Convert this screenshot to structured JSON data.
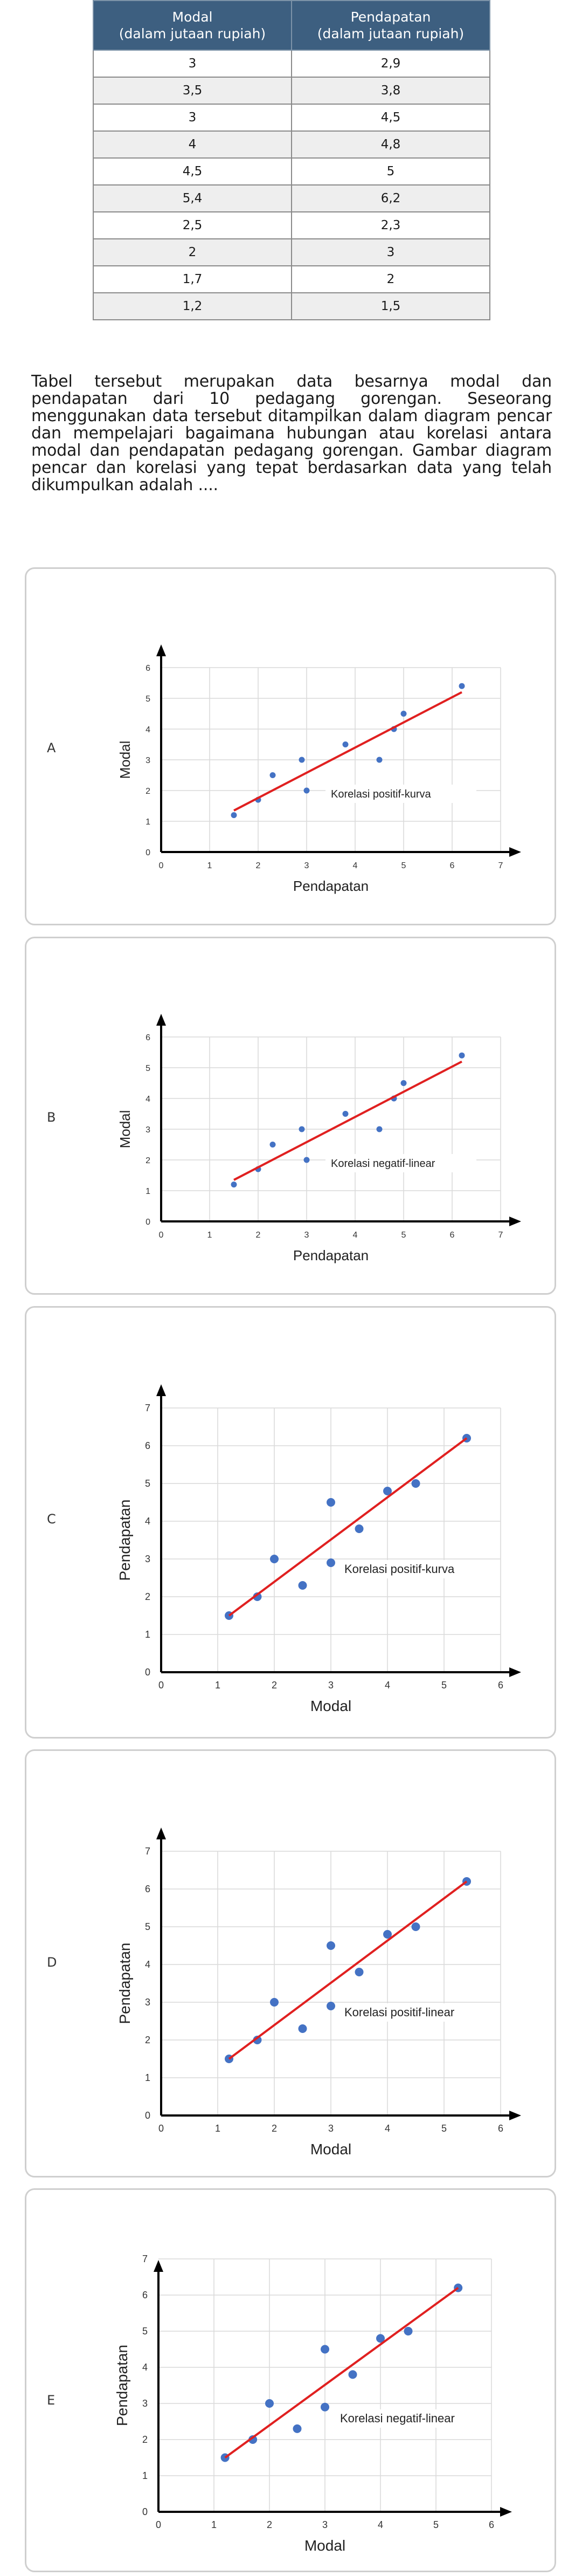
{
  "table": {
    "headers": [
      [
        "Modal",
        "(dalam jutaan rupiah)"
      ],
      [
        "Pendapatan",
        "(dalam jutaan rupiah)"
      ]
    ],
    "rows": [
      [
        "3",
        "2,9"
      ],
      [
        "3,5",
        "3,8"
      ],
      [
        "3",
        "4,5"
      ],
      [
        "4",
        "4,8"
      ],
      [
        "4,5",
        "5"
      ],
      [
        "5,4",
        "6,2"
      ],
      [
        "2,5",
        "2,3"
      ],
      [
        "2",
        "3"
      ],
      [
        "1,7",
        "2"
      ],
      [
        "1,2",
        "1,5"
      ]
    ]
  },
  "question": "Tabel tersebut merupakan data besarnya modal dan pendapatan dari 10 pedagang gorengan. Seseorang menggunakan data tersebut ditampilkan dalam diagram pencar dan mempelajari bagaimana hubungan atau korelasi antara modal dan pendapatan pedagang gorengan. Gambar diagram pencar dan korelasi yang tepat berdasarkan data yang telah dikumpulkan adalah ....",
  "options": [
    {
      "letter": "A",
      "label": "Korelasi positif-kurva"
    },
    {
      "letter": "B",
      "label": "Korelasi negatif-linear"
    },
    {
      "letter": "C",
      "label": "Korelasi positif-kurva"
    },
    {
      "letter": "D",
      "label": "Korelasi positif-linear"
    },
    {
      "letter": "E",
      "label": "Korelasi negatif-linear"
    }
  ],
  "colors": {
    "point": "#4472c4",
    "line": "#e02020",
    "axis": "#000000",
    "grid": "#d9d9d9",
    "header": "#3d5f80"
  },
  "chart_data": [
    {
      "type": "scatter",
      "option": "A",
      "xlabel": "Pendapatan",
      "ylabel": "Modal",
      "xlim": [
        0,
        7
      ],
      "ylim": [
        0,
        6
      ],
      "grid": true,
      "x": [
        2.9,
        3.8,
        4.5,
        4.8,
        5,
        6.2,
        2.3,
        3,
        2,
        1.5
      ],
      "y": [
        3,
        3.5,
        3,
        4,
        4.5,
        5.4,
        2.5,
        2,
        1.7,
        1.2
      ],
      "trendline": {
        "x": [
          1.5,
          6.2
        ],
        "y": [
          1.35,
          5.2
        ]
      },
      "annotation": "Korelasi positif-kurva"
    },
    {
      "type": "scatter",
      "option": "B",
      "xlabel": "Pendapatan",
      "ylabel": "Modal",
      "xlim": [
        0,
        7
      ],
      "ylim": [
        0,
        6
      ],
      "grid": true,
      "x": [
        2.9,
        3.8,
        4.5,
        4.8,
        5,
        6.2,
        2.3,
        3,
        2,
        1.5
      ],
      "y": [
        3,
        3.5,
        3,
        4,
        4.5,
        5.4,
        2.5,
        2,
        1.7,
        1.2
      ],
      "trendline": {
        "x": [
          1.5,
          6.2
        ],
        "y": [
          1.35,
          5.2
        ]
      },
      "annotation": "Korelasi negatif-linear"
    },
    {
      "type": "scatter",
      "option": "C",
      "xlabel": "Modal",
      "ylabel": "Pendapatan",
      "xlim": [
        0,
        6
      ],
      "ylim": [
        0,
        7
      ],
      "grid": true,
      "x": [
        3,
        3.5,
        3,
        4,
        4.5,
        5.4,
        2.5,
        2,
        1.7,
        1.2
      ],
      "y": [
        2.9,
        3.8,
        4.5,
        4.8,
        5,
        6.2,
        2.3,
        3,
        2,
        1.5
      ],
      "trendline": {
        "x": [
          1.2,
          5.4
        ],
        "y": [
          1.5,
          6.2
        ]
      },
      "annotation": "Korelasi positif-kurva"
    },
    {
      "type": "scatter",
      "option": "D",
      "xlabel": "Modal",
      "ylabel": "Pendapatan",
      "xlim": [
        0,
        6
      ],
      "ylim": [
        0,
        7
      ],
      "grid": true,
      "x": [
        3,
        3.5,
        3,
        4,
        4.5,
        5.4,
        2.5,
        2,
        1.7,
        1.2
      ],
      "y": [
        2.9,
        3.8,
        4.5,
        4.8,
        5,
        6.2,
        2.3,
        3,
        2,
        1.5
      ],
      "trendline": {
        "x": [
          1.2,
          5.4
        ],
        "y": [
          1.5,
          6.2
        ]
      },
      "annotation": "Korelasi positif-linear"
    },
    {
      "type": "scatter",
      "option": "E",
      "xlabel": "Modal",
      "ylabel": "Pendapatan",
      "xlim": [
        0,
        6
      ],
      "ylim": [
        0,
        7
      ],
      "grid": true,
      "x": [
        3,
        3.5,
        3,
        4,
        4.5,
        5.4,
        2.5,
        2,
        1.7,
        1.2
      ],
      "y": [
        2.9,
        3.8,
        4.5,
        4.8,
        5,
        6.2,
        2.3,
        3,
        2,
        1.5
      ],
      "trendline": {
        "x": [
          1.2,
          5.4
        ],
        "y": [
          1.5,
          6.2
        ]
      },
      "annotation": "Korelasi negatif-linear"
    }
  ]
}
